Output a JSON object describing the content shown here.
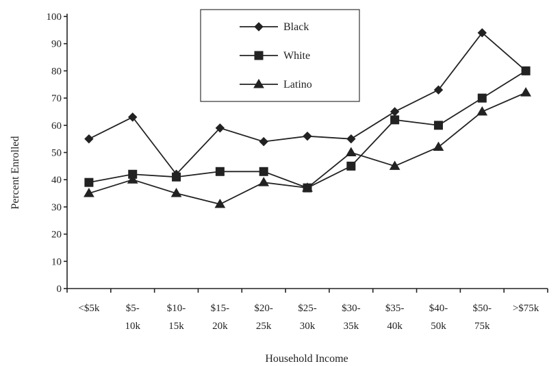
{
  "chart_data": {
    "type": "line",
    "title": "",
    "xlabel": "Household Income",
    "ylabel": "Percent Enrolled",
    "categories": [
      [
        "<$5k"
      ],
      [
        "$5-",
        "10k"
      ],
      [
        "$10-",
        "15k"
      ],
      [
        "$15-",
        "20k"
      ],
      [
        "$20-",
        "25k"
      ],
      [
        "$25-",
        "30k"
      ],
      [
        "$30-",
        "35k"
      ],
      [
        "$35-",
        "40k"
      ],
      [
        "$40-",
        "50k"
      ],
      [
        "$50-",
        "75k"
      ],
      [
        ">$75k"
      ]
    ],
    "y_ticks": [
      "0",
      "10",
      "20",
      "30",
      "40",
      "50",
      "60",
      "70",
      "80",
      "90",
      "100"
    ],
    "ylim": [
      0,
      100
    ],
    "grid": false,
    "legend_position": "top-center",
    "series": [
      {
        "name": "Black",
        "marker": "diamond",
        "values": [
          55,
          63,
          42,
          59,
          54,
          56,
          55,
          65,
          73,
          94,
          80
        ]
      },
      {
        "name": "White",
        "marker": "square",
        "values": [
          39,
          42,
          41,
          43,
          43,
          37,
          45,
          62,
          60,
          70,
          80
        ]
      },
      {
        "name": "Latino",
        "marker": "triangle",
        "values": [
          35,
          40,
          35,
          31,
          39,
          37,
          50,
          45,
          52,
          65,
          72
        ]
      }
    ]
  }
}
